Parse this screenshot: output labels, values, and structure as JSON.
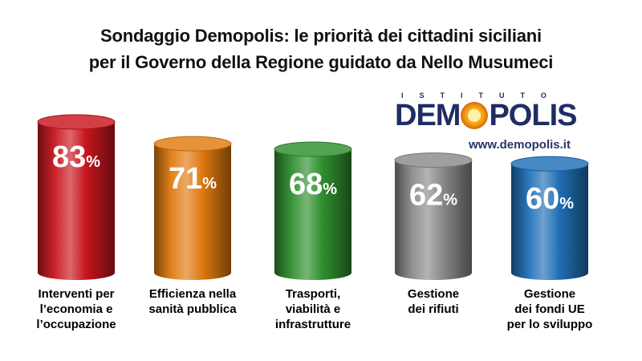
{
  "title_lines": [
    "Sondaggio Demopolis: le priorità dei cittadini siciliani",
    "per il Governo della Regione guidato da Nello Musumeci"
  ],
  "logo": {
    "top_text": "ISTITUTO",
    "name": "DEMOPOLIS",
    "url": "www.demopolis.it"
  },
  "chart_data": {
    "type": "bar",
    "title": "Sondaggio Demopolis: le priorità dei cittadini siciliani per il Governo della Regione guidato da Nello Musumeci",
    "categories": [
      "Interventi per\nl’economia e\nl’occupazione",
      "Efficienza nella\nsanità pubblica",
      "Trasporti,\nviabilità e\ninfrastrutture",
      "Gestione\ndei rifiuti",
      "Gestione\ndei fondi UE\nper lo sviluppo"
    ],
    "values": [
      83,
      71,
      68,
      62,
      60
    ],
    "value_suffix": "%",
    "ylim": [
      0,
      83
    ],
    "grid": false,
    "colors": [
      "#c8161d",
      "#e07a10",
      "#2f8f2e",
      "#8a8a8a",
      "#1f6fb5"
    ]
  }
}
